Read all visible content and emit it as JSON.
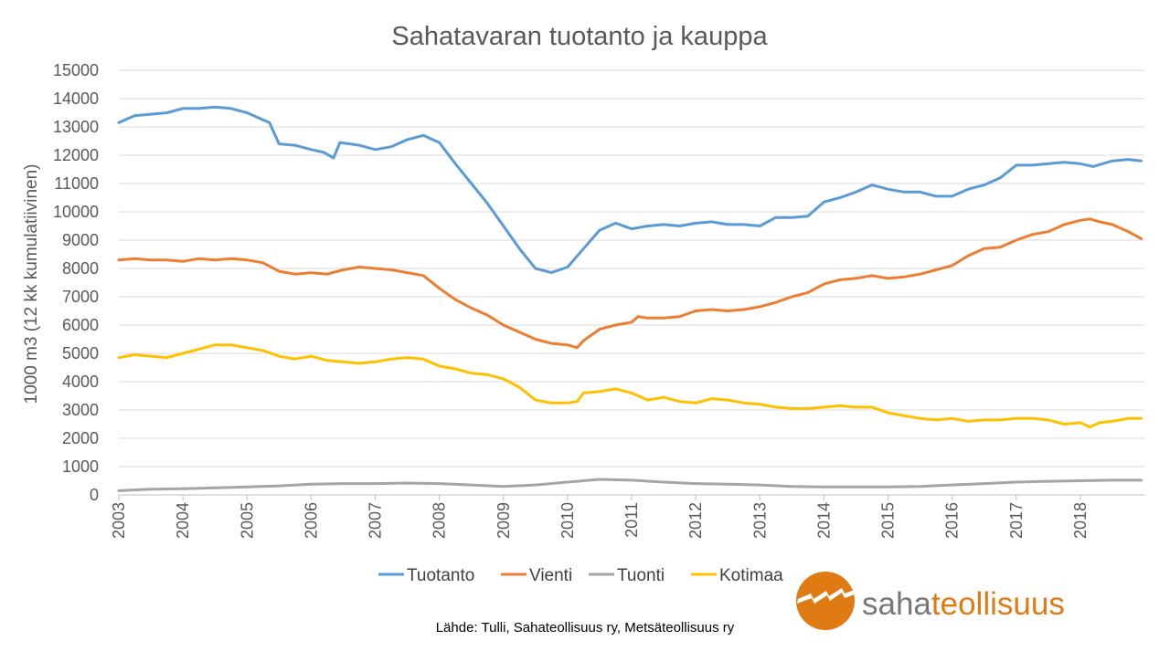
{
  "chart_data": {
    "type": "line",
    "title": "Sahatavaran tuotanto ja kauppa",
    "ylabel": "1000 m3 (12 kk kumulatiivinen)",
    "xlabel": "",
    "xlim": [
      2003,
      2019
    ],
    "ylim": [
      0,
      15000
    ],
    "y_ticks": [
      0,
      1000,
      2000,
      3000,
      4000,
      5000,
      6000,
      7000,
      8000,
      9000,
      10000,
      11000,
      12000,
      13000,
      14000,
      15000
    ],
    "x_ticks": [
      "2003",
      "2004",
      "2005",
      "2006",
      "2007",
      "2008",
      "2009",
      "2010",
      "2011",
      "2012",
      "2013",
      "2014",
      "2015",
      "2016",
      "2017",
      "2018"
    ],
    "grid": true,
    "legend_position": "bottom",
    "series": [
      {
        "name": "Tuotanto",
        "color": "#5B9BD5",
        "points": [
          [
            2003.0,
            13150
          ],
          [
            2003.25,
            13400
          ],
          [
            2003.5,
            13450
          ],
          [
            2003.75,
            13500
          ],
          [
            2004.0,
            13650
          ],
          [
            2004.25,
            13650
          ],
          [
            2004.5,
            13700
          ],
          [
            2004.75,
            13650
          ],
          [
            2005.0,
            13500
          ],
          [
            2005.2,
            13300
          ],
          [
            2005.35,
            13150
          ],
          [
            2005.5,
            12400
          ],
          [
            2005.75,
            12350
          ],
          [
            2006.0,
            12200
          ],
          [
            2006.2,
            12100
          ],
          [
            2006.35,
            11900
          ],
          [
            2006.45,
            12450
          ],
          [
            2006.75,
            12350
          ],
          [
            2007.0,
            12200
          ],
          [
            2007.25,
            12300
          ],
          [
            2007.5,
            12550
          ],
          [
            2007.75,
            12700
          ],
          [
            2008.0,
            12450
          ],
          [
            2008.25,
            11700
          ],
          [
            2008.5,
            11000
          ],
          [
            2008.75,
            10300
          ],
          [
            2009.0,
            9500
          ],
          [
            2009.25,
            8700
          ],
          [
            2009.5,
            8000
          ],
          [
            2009.75,
            7850
          ],
          [
            2010.0,
            8050
          ],
          [
            2010.25,
            8700
          ],
          [
            2010.5,
            9350
          ],
          [
            2010.75,
            9600
          ],
          [
            2011.0,
            9400
          ],
          [
            2011.25,
            9500
          ],
          [
            2011.5,
            9550
          ],
          [
            2011.75,
            9500
          ],
          [
            2012.0,
            9600
          ],
          [
            2012.25,
            9650
          ],
          [
            2012.5,
            9550
          ],
          [
            2012.75,
            9550
          ],
          [
            2013.0,
            9500
          ],
          [
            2013.25,
            9800
          ],
          [
            2013.5,
            9800
          ],
          [
            2013.75,
            9850
          ],
          [
            2014.0,
            10350
          ],
          [
            2014.25,
            10500
          ],
          [
            2014.5,
            10700
          ],
          [
            2014.75,
            10950
          ],
          [
            2015.0,
            10800
          ],
          [
            2015.25,
            10700
          ],
          [
            2015.5,
            10700
          ],
          [
            2015.75,
            10550
          ],
          [
            2016.0,
            10550
          ],
          [
            2016.25,
            10800
          ],
          [
            2016.5,
            10950
          ],
          [
            2016.75,
            11200
          ],
          [
            2017.0,
            11650
          ],
          [
            2017.25,
            11650
          ],
          [
            2017.5,
            11700
          ],
          [
            2017.75,
            11750
          ],
          [
            2018.0,
            11700
          ],
          [
            2018.2,
            11600
          ],
          [
            2018.5,
            11800
          ],
          [
            2018.75,
            11850
          ],
          [
            2018.95,
            11800
          ]
        ]
      },
      {
        "name": "Vienti",
        "color": "#ED7D31",
        "points": [
          [
            2003.0,
            8300
          ],
          [
            2003.25,
            8350
          ],
          [
            2003.5,
            8300
          ],
          [
            2003.75,
            8300
          ],
          [
            2004.0,
            8250
          ],
          [
            2004.25,
            8350
          ],
          [
            2004.5,
            8300
          ],
          [
            2004.75,
            8350
          ],
          [
            2005.0,
            8300
          ],
          [
            2005.25,
            8200
          ],
          [
            2005.5,
            7900
          ],
          [
            2005.75,
            7800
          ],
          [
            2006.0,
            7850
          ],
          [
            2006.25,
            7800
          ],
          [
            2006.5,
            7950
          ],
          [
            2006.75,
            8050
          ],
          [
            2007.0,
            8000
          ],
          [
            2007.25,
            7950
          ],
          [
            2007.5,
            7850
          ],
          [
            2007.75,
            7750
          ],
          [
            2008.0,
            7300
          ],
          [
            2008.25,
            6900
          ],
          [
            2008.5,
            6600
          ],
          [
            2008.75,
            6350
          ],
          [
            2009.0,
            6000
          ],
          [
            2009.25,
            5750
          ],
          [
            2009.5,
            5500
          ],
          [
            2009.75,
            5350
          ],
          [
            2010.0,
            5300
          ],
          [
            2010.15,
            5200
          ],
          [
            2010.25,
            5450
          ],
          [
            2010.5,
            5850
          ],
          [
            2010.75,
            6000
          ],
          [
            2011.0,
            6100
          ],
          [
            2011.1,
            6300
          ],
          [
            2011.25,
            6250
          ],
          [
            2011.5,
            6250
          ],
          [
            2011.75,
            6300
          ],
          [
            2012.0,
            6500
          ],
          [
            2012.25,
            6550
          ],
          [
            2012.5,
            6500
          ],
          [
            2012.75,
            6550
          ],
          [
            2013.0,
            6650
          ],
          [
            2013.25,
            6800
          ],
          [
            2013.5,
            7000
          ],
          [
            2013.75,
            7150
          ],
          [
            2014.0,
            7450
          ],
          [
            2014.25,
            7600
          ],
          [
            2014.5,
            7650
          ],
          [
            2014.75,
            7750
          ],
          [
            2015.0,
            7650
          ],
          [
            2015.25,
            7700
          ],
          [
            2015.5,
            7800
          ],
          [
            2015.75,
            7950
          ],
          [
            2016.0,
            8100
          ],
          [
            2016.25,
            8450
          ],
          [
            2016.5,
            8700
          ],
          [
            2016.75,
            8750
          ],
          [
            2017.0,
            9000
          ],
          [
            2017.25,
            9200
          ],
          [
            2017.5,
            9300
          ],
          [
            2017.75,
            9550
          ],
          [
            2018.0,
            9700
          ],
          [
            2018.15,
            9750
          ],
          [
            2018.3,
            9650
          ],
          [
            2018.5,
            9550
          ],
          [
            2018.75,
            9300
          ],
          [
            2018.95,
            9050
          ]
        ]
      },
      {
        "name": "Tuonti",
        "color": "#A5A5A5",
        "points": [
          [
            2003.0,
            150
          ],
          [
            2003.5,
            200
          ],
          [
            2004.0,
            220
          ],
          [
            2004.5,
            250
          ],
          [
            2005.0,
            280
          ],
          [
            2005.5,
            320
          ],
          [
            2006.0,
            380
          ],
          [
            2006.5,
            400
          ],
          [
            2007.0,
            400
          ],
          [
            2007.5,
            420
          ],
          [
            2008.0,
            400
          ],
          [
            2008.5,
            350
          ],
          [
            2009.0,
            300
          ],
          [
            2009.5,
            350
          ],
          [
            2010.0,
            450
          ],
          [
            2010.5,
            550
          ],
          [
            2011.0,
            520
          ],
          [
            2011.5,
            450
          ],
          [
            2012.0,
            400
          ],
          [
            2012.5,
            380
          ],
          [
            2013.0,
            350
          ],
          [
            2013.5,
            300
          ],
          [
            2014.0,
            280
          ],
          [
            2014.5,
            280
          ],
          [
            2015.0,
            280
          ],
          [
            2015.5,
            300
          ],
          [
            2016.0,
            350
          ],
          [
            2016.5,
            400
          ],
          [
            2017.0,
            450
          ],
          [
            2017.5,
            480
          ],
          [
            2018.0,
            500
          ],
          [
            2018.5,
            520
          ],
          [
            2018.95,
            520
          ]
        ]
      },
      {
        "name": "Kotimaa",
        "color": "#FFC000",
        "points": [
          [
            2003.0,
            4850
          ],
          [
            2003.25,
            4950
          ],
          [
            2003.5,
            4900
          ],
          [
            2003.75,
            4850
          ],
          [
            2004.0,
            5000
          ],
          [
            2004.25,
            5150
          ],
          [
            2004.5,
            5300
          ],
          [
            2004.75,
            5300
          ],
          [
            2005.0,
            5200
          ],
          [
            2005.25,
            5100
          ],
          [
            2005.5,
            4900
          ],
          [
            2005.75,
            4800
          ],
          [
            2006.0,
            4900
          ],
          [
            2006.25,
            4750
          ],
          [
            2006.5,
            4700
          ],
          [
            2006.75,
            4650
          ],
          [
            2007.0,
            4700
          ],
          [
            2007.25,
            4800
          ],
          [
            2007.5,
            4850
          ],
          [
            2007.75,
            4800
          ],
          [
            2008.0,
            4550
          ],
          [
            2008.25,
            4450
          ],
          [
            2008.5,
            4300
          ],
          [
            2008.75,
            4250
          ],
          [
            2009.0,
            4100
          ],
          [
            2009.25,
            3800
          ],
          [
            2009.5,
            3350
          ],
          [
            2009.75,
            3250
          ],
          [
            2010.0,
            3250
          ],
          [
            2010.15,
            3300
          ],
          [
            2010.25,
            3600
          ],
          [
            2010.5,
            3650
          ],
          [
            2010.75,
            3750
          ],
          [
            2011.0,
            3600
          ],
          [
            2011.25,
            3350
          ],
          [
            2011.5,
            3450
          ],
          [
            2011.75,
            3300
          ],
          [
            2012.0,
            3250
          ],
          [
            2012.25,
            3400
          ],
          [
            2012.5,
            3350
          ],
          [
            2012.75,
            3250
          ],
          [
            2013.0,
            3200
          ],
          [
            2013.25,
            3100
          ],
          [
            2013.5,
            3050
          ],
          [
            2013.75,
            3050
          ],
          [
            2014.0,
            3100
          ],
          [
            2014.25,
            3150
          ],
          [
            2014.5,
            3100
          ],
          [
            2014.75,
            3100
          ],
          [
            2015.0,
            2900
          ],
          [
            2015.25,
            2800
          ],
          [
            2015.5,
            2700
          ],
          [
            2015.75,
            2650
          ],
          [
            2016.0,
            2700
          ],
          [
            2016.25,
            2600
          ],
          [
            2016.5,
            2650
          ],
          [
            2016.75,
            2650
          ],
          [
            2017.0,
            2700
          ],
          [
            2017.25,
            2700
          ],
          [
            2017.5,
            2650
          ],
          [
            2017.75,
            2500
          ],
          [
            2018.0,
            2550
          ],
          [
            2018.15,
            2400
          ],
          [
            2018.3,
            2550
          ],
          [
            2018.5,
            2600
          ],
          [
            2018.75,
            2700
          ],
          [
            2018.95,
            2700
          ]
        ]
      }
    ],
    "source_note": "Lähde: Tulli, Sahateollisuus ry, Metsäteollisuus ry",
    "logo": {
      "text_light": "saha",
      "text_bold": "teollisuus",
      "color_orange": "#E07B14",
      "color_gray": "#777777"
    }
  }
}
